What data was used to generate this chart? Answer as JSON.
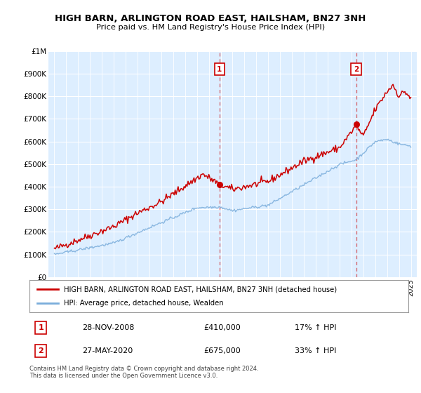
{
  "title": "HIGH BARN, ARLINGTON ROAD EAST, HAILSHAM, BN27 3NH",
  "subtitle": "Price paid vs. HM Land Registry's House Price Index (HPI)",
  "legend_label_red": "HIGH BARN, ARLINGTON ROAD EAST, HAILSHAM, BN27 3NH (detached house)",
  "legend_label_blue": "HPI: Average price, detached house, Wealden",
  "sale1_date": "28-NOV-2008",
  "sale1_price": 410000,
  "sale1_pct": "17% ↑ HPI",
  "sale1_year": 2008.9,
  "sale2_date": "27-MAY-2020",
  "sale2_price": 675000,
  "sale2_pct": "33% ↑ HPI",
  "sale2_year": 2020.4,
  "footer": "Contains HM Land Registry data © Crown copyright and database right 2024.\nThis data is licensed under the Open Government Licence v3.0.",
  "red_color": "#cc0000",
  "blue_color": "#7aaddb",
  "plot_bg_color": "#ddeeff",
  "ylim": [
    0,
    1000000
  ],
  "xlim_start": 1994.5,
  "xlim_end": 2025.5
}
